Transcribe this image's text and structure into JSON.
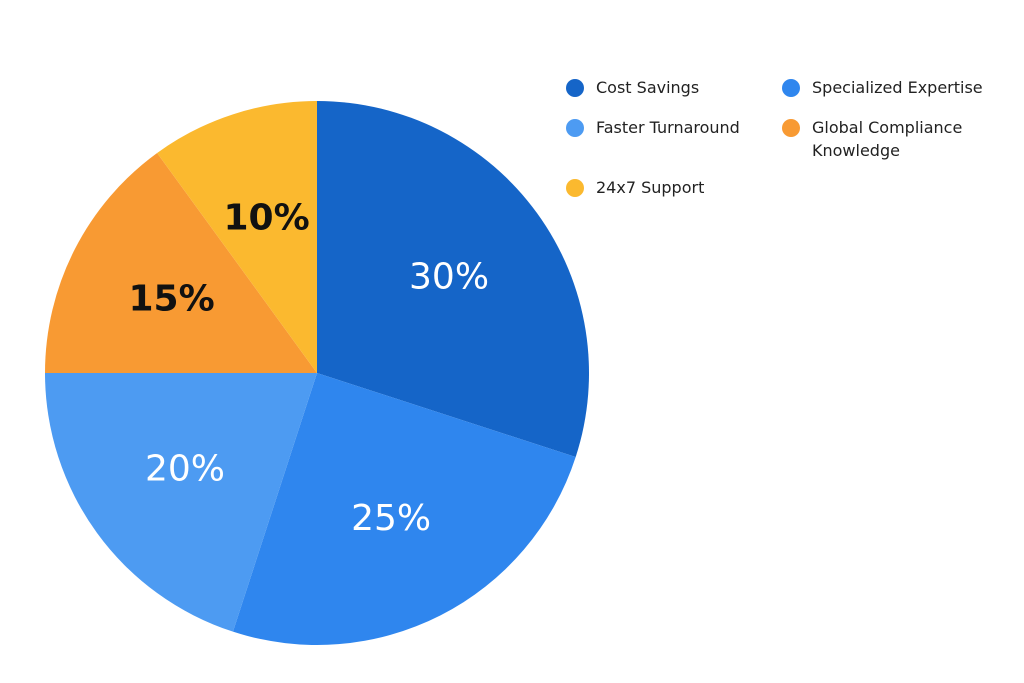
{
  "chart_data": {
    "type": "pie",
    "title": "",
    "categories": [
      "Cost Savings",
      "Specialized Expertise",
      "Faster Turnaround",
      "Global Compliance Knowledge",
      "24x7 Support"
    ],
    "values": [
      30,
      25,
      20,
      15,
      10
    ],
    "value_labels": [
      "30%",
      "25%",
      "20%",
      "15%",
      "10%"
    ],
    "colors": [
      "#1565c8",
      "#2f86ee",
      "#4d9bf2",
      "#f89a33",
      "#fbb92f"
    ],
    "label_colors": [
      "#ffffff",
      "#ffffff",
      "#ffffff",
      "#111111",
      "#111111"
    ],
    "start_angle_deg": 0,
    "direction": "clockwise",
    "legend_placement": "top-right",
    "legend": [
      {
        "label": "Cost Savings",
        "color": "#1565c8"
      },
      {
        "label": "Specialized Expertise",
        "color": "#2f86ee"
      },
      {
        "label": "Faster Turnaround",
        "color": "#4d9bf2"
      },
      {
        "label": "Global Compliance Knowledge",
        "color": "#f89a33"
      },
      {
        "label": "24x7 Support",
        "color": "#fbb92f"
      }
    ]
  }
}
